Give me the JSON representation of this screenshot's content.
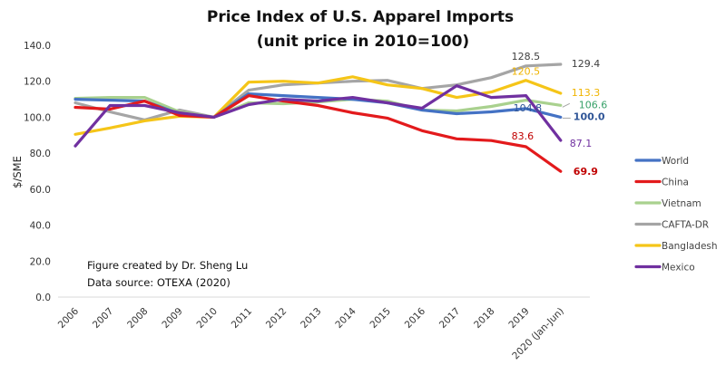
{
  "chart_data": {
    "type": "line",
    "title": "Price Index of U.S. Apparel Imports",
    "subtitle": "(unit price in 2010=100)",
    "xlabel": "",
    "ylabel": "$/SME",
    "ylim": [
      0,
      140
    ],
    "yticks": [
      "0.0",
      "20.0",
      "40.0",
      "60.0",
      "80.0",
      "100.0",
      "120.0",
      "140.0"
    ],
    "grid": false,
    "legend_position": "right",
    "categories": [
      "2006",
      "2007",
      "2008",
      "2009",
      "2010",
      "2011",
      "2012",
      "2013",
      "2014",
      "2015",
      "2016",
      "2017",
      "2018",
      "2019",
      "2020 (Jan-Jun)"
    ],
    "series": [
      {
        "name": "World",
        "color": "#4472c4",
        "values": [
          110,
          109.5,
          109,
          102,
          100,
          113,
          112,
          111,
          110,
          108,
          104,
          102,
          103,
          104.8,
          100.0
        ],
        "labels": [
          {
            "index": 13,
            "text": "104.8"
          },
          {
            "index": 14,
            "text": "100.0",
            "bold": true
          }
        ]
      },
      {
        "name": "China",
        "color": "#e31a1c",
        "values": [
          105.5,
          104.5,
          109,
          101,
          100,
          112,
          109,
          106.5,
          102.5,
          99.5,
          92.5,
          88,
          87,
          83.6,
          69.9
        ],
        "labels": [
          {
            "index": 13,
            "text": "83.6"
          },
          {
            "index": 14,
            "text": "69.9",
            "bold": true
          }
        ]
      },
      {
        "name": "Vietnam",
        "color": "#a9d18e",
        "values": [
          110.5,
          111,
          111,
          103,
          100,
          108,
          107.5,
          108.5,
          110,
          109,
          104,
          103.5,
          106,
          109.5,
          106.6
        ],
        "labels": [
          {
            "index": 14,
            "text": "106.6"
          }
        ]
      },
      {
        "name": "CAFTA-DR",
        "color": "#a5a5a5",
        "values": [
          108,
          103,
          98.5,
          104,
          100,
          115,
          118,
          119,
          120,
          120.5,
          116,
          118,
          122,
          128.5,
          129.4
        ],
        "labels": [
          {
            "index": 13,
            "text": "128.5"
          },
          {
            "index": 14,
            "text": "129.4"
          }
        ]
      },
      {
        "name": "Bangladesh",
        "color": "#f5c518",
        "values": [
          90.5,
          94,
          98,
          100.5,
          100,
          119.5,
          120,
          119,
          122.5,
          118,
          116,
          111,
          114,
          120.5,
          113.3
        ],
        "labels": [
          {
            "index": 13,
            "text": "120.5"
          },
          {
            "index": 14,
            "text": "113.3"
          }
        ]
      },
      {
        "name": "Mexico",
        "color": "#7030a0",
        "values": [
          84,
          106.5,
          106.5,
          102.5,
          100,
          107,
          110,
          109,
          111,
          108,
          105,
          117.5,
          111,
          112,
          87.1
        ],
        "labels": [
          {
            "index": 14,
            "text": "87.1"
          }
        ]
      }
    ],
    "annotations": [
      "Figure created by Dr. Sheng Lu",
      "Data source: OTEXA (2020)"
    ]
  }
}
